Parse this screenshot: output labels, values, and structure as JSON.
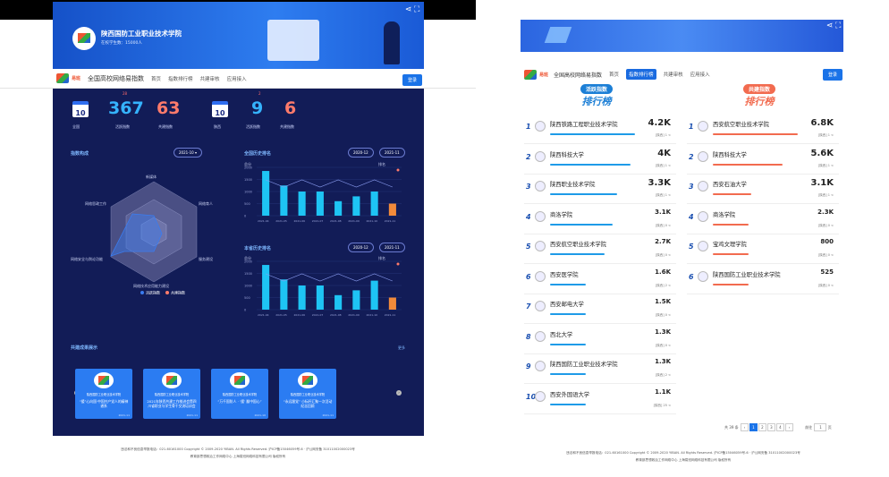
{
  "left": {
    "school": {
      "name": "陕西国防工业职业技术学院",
      "students": "在校学生数：15000人"
    },
    "nav": {
      "site_title": "全国高校网络易指数",
      "items": [
        "首页",
        "指数排行榜",
        "共建审核",
        "应用接入"
      ],
      "login": "登录"
    },
    "stats": {
      "national": {
        "cal": "10",
        "label": "全国",
        "vitality": "367",
        "vitality_label": "活跃指数",
        "vitality_delta": "28",
        "cobuild": "63",
        "cobuild_label": "共建指数"
      },
      "province": {
        "cal": "10",
        "label": "陕西",
        "vitality": "9",
        "vitality_label": "活跃指数",
        "vitality_delta": "2",
        "cobuild": "6",
        "cobuild_label": "共建指数"
      }
    },
    "radar": {
      "title": "指数构成",
      "month": "2021-10",
      "axes": [
        "新媒体",
        "网络育人",
        "服务建设",
        "网络技术应用能力建设",
        "网络安全与舆论功能",
        "网络思政工作"
      ],
      "legend": [
        "活跃指数",
        "共建指数"
      ]
    },
    "history_national": {
      "title": "全国历史排名",
      "from": "2020-12",
      "to": "2021-11",
      "left_label": "总分",
      "right_label": "排名",
      "y_ticks": [
        "2000",
        "1500",
        "1000",
        "500",
        "0"
      ],
      "months": [
        "2021-04",
        "2021-05",
        "2021-06",
        "2021-07",
        "2021-08",
        "2021-09",
        "2021-10",
        "2021-11"
      ],
      "values": [
        1850,
        1250,
        1000,
        1000,
        600,
        800,
        1000,
        500
      ]
    },
    "history_province": {
      "title": "本省历史排名",
      "from": "2020-12",
      "to": "2021-11",
      "left_label": "总分",
      "right_label": "排名",
      "y_ticks": [
        "2000",
        "1500",
        "1000",
        "500",
        "0"
      ],
      "months": [
        "2021-04",
        "2021-05",
        "2021-06",
        "2021-07",
        "2021-08",
        "2021-09",
        "2021-10",
        "2021-11"
      ],
      "values": [
        1850,
        1250,
        1000,
        1000,
        600,
        800,
        1200,
        500
      ]
    },
    "showcase": {
      "title": "共建成果展示",
      "more": "更多",
      "cards": [
        {
          "title": "陕西国防工业职业技术学院",
          "text": "“援”心向国·中国共产党人的精神谱系",
          "date": "2021-11"
        },
        {
          "title": "陕西国防工业职业技术学院",
          "text": "2021年陕西共建工作推进会暨四川省职业与学生骨干交流培训会",
          "date": "2021-11"
        },
        {
          "title": "陕西国防工业职业技术学院",
          "text": "“万千国防人 · ‘援’ 翻中国心”",
          "date": "2021-10"
        },
        {
          "title": "陕西国防工业职业技术学院",
          "text": "“永远跟党” 小标杆汇聚一次活动纪念回顾",
          "date": "2021-11"
        }
      ]
    },
    "footer": [
      "违法和不良信息举报电话：021-60161000 Copyright © 2009-2020 YIBAN. All Rights Reserved. 沪ICP备15046059号-6 · 沪公网安备 31011002000023号",
      "教育部思想政治工作网络中心 上海易班网络科技有限公司 版权所有"
    ]
  },
  "right": {
    "nav": {
      "site_title": "全国高校网络易指数",
      "items": [
        "首页",
        "指数排行榜",
        "共建审核",
        "应用接入"
      ],
      "login": "登录"
    },
    "left_title": "活跃指数",
    "left_sub": "排行榜",
    "right_title": "共建指数",
    "right_sub": "排行榜",
    "left_list": [
      {
        "rank": "1",
        "name": "陕西铁路工程职业技术学院",
        "score": "4.2K",
        "meta": "[陕西] 1 <"
      },
      {
        "rank": "2",
        "name": "陕西科技大学",
        "score": "4K",
        "meta": "[陕西] 1 <"
      },
      {
        "rank": "3",
        "name": "陕西职业技术学院",
        "score": "3.3K",
        "meta": "[陕西] 1 <"
      },
      {
        "rank": "4",
        "name": "商洛学院",
        "score": "3.1K",
        "meta": "[陕西] 0 <"
      },
      {
        "rank": "5",
        "name": "西安航空职业技术学院",
        "score": "2.7K",
        "meta": "[陕西] 0 <"
      },
      {
        "rank": "6",
        "name": "西安医学院",
        "score": "1.6K",
        "meta": "[陕西] 2 <"
      },
      {
        "rank": "7",
        "name": "西安邮电大学",
        "score": "1.5K",
        "meta": "[陕西] 0 <"
      },
      {
        "rank": "8",
        "name": "西北大学",
        "score": "1.3K",
        "meta": "[陕西] 0 <"
      },
      {
        "rank": "9",
        "name": "陕西国防工业职业技术学院",
        "score": "1.3K",
        "meta": "[陕西] 2 <"
      },
      {
        "rank": "10",
        "name": "西安外国语大学",
        "score": "1.1K",
        "meta": "[陕西] 25 <"
      }
    ],
    "right_list": [
      {
        "rank": "1",
        "name": "西安航空职业技术学院",
        "score": "6.8K",
        "meta": "[陕西] 1 <"
      },
      {
        "rank": "2",
        "name": "陕西科技大学",
        "score": "5.6K",
        "meta": "[陕西] 1 <"
      },
      {
        "rank": "3",
        "name": "西安石油大学",
        "score": "3.1K",
        "meta": "[陕西] 1 <"
      },
      {
        "rank": "4",
        "name": "商洛学院",
        "score": "2.3K",
        "meta": "[陕西] 0 <"
      },
      {
        "rank": "5",
        "name": "宝鸡文理学院",
        "score": "800",
        "meta": "[陕西] 0 <"
      },
      {
        "rank": "6",
        "name": "陕西国防工业职业技术学院",
        "score": "525",
        "meta": "[陕西] 0 <"
      }
    ],
    "pager": {
      "total": "共 39 条",
      "pages": [
        "1",
        "2",
        "3",
        "4"
      ],
      "goto": "前往",
      "goto_val": "1",
      "page_unit": "页"
    },
    "footer": [
      "违法和不良信息举报电话：021-60161000 Copyright © 2009-2020 YIBAN. All Rights Reserved. 沪ICP备15046059号-6 · 沪公网安备 31011002000023号",
      "教育部思想政治工作网络中心 上海易班网络科技有限公司 版权所有"
    ]
  }
}
